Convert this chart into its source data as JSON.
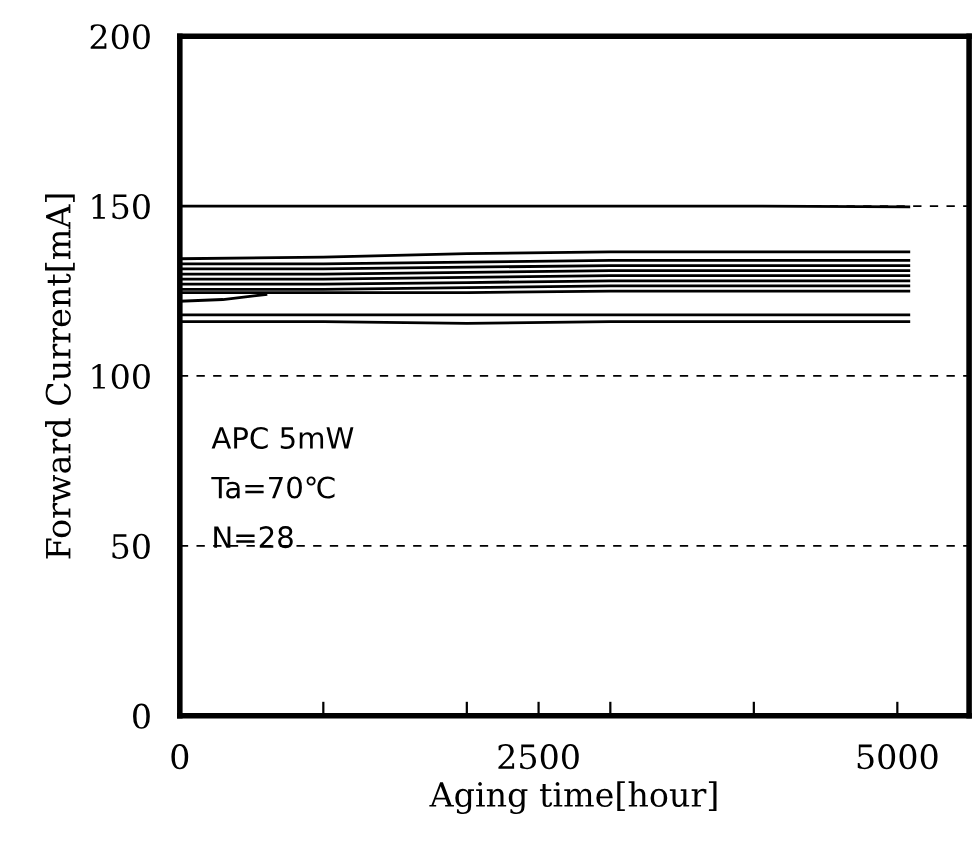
{
  "chart_data": {
    "type": "line",
    "xlabel": "Aging time[hour]",
    "ylabel": "Forward Current[mA]",
    "x": [
      0,
      1000,
      2000,
      3000,
      4000,
      5080
    ],
    "series": [
      {
        "color": "#000000",
        "values": [
          150,
          150,
          150,
          150,
          150,
          149.8
        ]
      },
      {
        "color": "#000000",
        "values": [
          134.5,
          135,
          136,
          136.5,
          136.5,
          136.5
        ]
      },
      {
        "color": "#000000",
        "values": [
          133,
          133,
          133.5,
          134,
          134,
          134
        ]
      },
      {
        "color": "#000000",
        "values": [
          131.5,
          131.5,
          132,
          132.5,
          132.5,
          132.5
        ]
      },
      {
        "color": "#000000",
        "values": [
          130,
          130,
          130.5,
          131,
          131,
          131
        ]
      },
      {
        "color": "#000000",
        "values": [
          128.5,
          128.5,
          129,
          129.5,
          129.5,
          129.5
        ]
      },
      {
        "color": "#000000",
        "values": [
          127,
          127,
          127.5,
          128,
          128,
          128
        ]
      },
      {
        "color": "#000000",
        "values": [
          125.5,
          125.5,
          126,
          126.5,
          126.5,
          126.5
        ]
      },
      {
        "color": "#000000",
        "values": [
          124.5,
          124.5,
          124.5,
          125,
          125,
          125
        ]
      },
      {
        "color": "#000000",
        "x": [
          0,
          300,
          600
        ],
        "values": [
          122,
          122.5,
          124
        ]
      },
      {
        "color": "#000000",
        "values": [
          118,
          118,
          118,
          118,
          118,
          118
        ]
      },
      {
        "color": "#000000",
        "values": [
          116,
          116,
          115.5,
          116,
          116,
          116
        ]
      }
    ],
    "xlim": [
      0,
      5500
    ],
    "xticks": [
      0,
      {
        "value": 1000,
        "label": null
      },
      {
        "value": 2000,
        "label": null
      },
      2500,
      {
        "value": 3000,
        "label": null
      },
      {
        "value": 4000,
        "label": null
      },
      5000
    ],
    "ylim": [
      0,
      200
    ],
    "yticks": [
      0,
      50,
      100,
      150,
      200
    ],
    "grid": "y",
    "marker": "none",
    "line_style": "solid",
    "annotations": [
      "APC 5mW",
      "Ta=70℃",
      "N=28"
    ]
  }
}
